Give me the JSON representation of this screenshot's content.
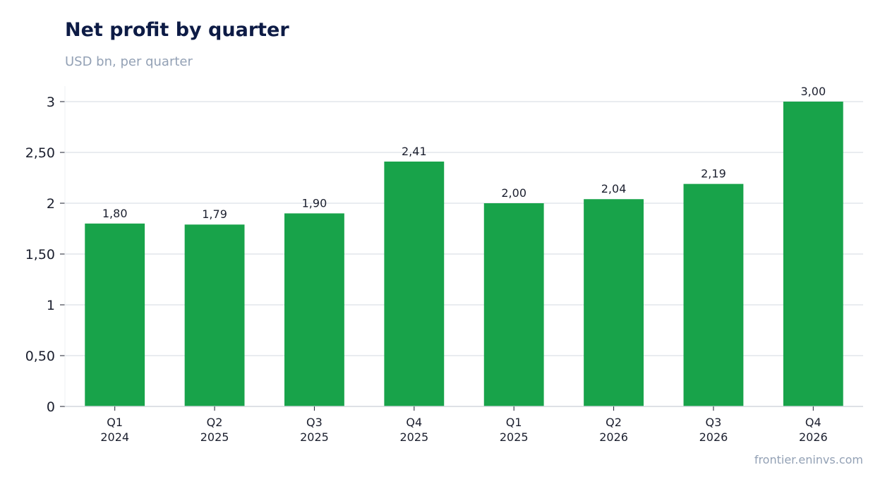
{
  "header": {
    "title": "Net profit by quarter",
    "subtitle": "USD bn, per quarter"
  },
  "footer": {
    "source": "frontier.eninvs.com"
  },
  "chart_data": {
    "type": "bar",
    "title": "Net profit by quarter",
    "subtitle": "USD bn, per quarter",
    "categories": [
      [
        "Q1",
        "2024"
      ],
      [
        "Q2",
        "2025"
      ],
      [
        "Q3",
        "2025"
      ],
      [
        "Q4",
        "2025"
      ],
      [
        "Q1",
        "2025"
      ],
      [
        "Q2",
        "2026"
      ],
      [
        "Q3",
        "2026"
      ],
      [
        "Q4",
        "2026"
      ]
    ],
    "values": [
      1.8,
      1.79,
      1.9,
      2.41,
      2.0,
      2.04,
      2.19,
      3.0
    ],
    "data_labels": [
      "1,80",
      "1,79",
      "1,90",
      "2,41",
      "2,00",
      "2,04",
      "2,19",
      "3,00"
    ],
    "yticks": [
      0,
      0.5,
      1,
      1.5,
      2,
      2.5,
      3
    ],
    "ytick_labels": [
      "0",
      "0,50",
      "1",
      "1,50",
      "2",
      "2,50",
      "3"
    ],
    "ylim": [
      0,
      3.15
    ],
    "grid": true,
    "bar_color": "#18a34a",
    "grid_color": "#e9ecf0",
    "axis_color": "#d3d7de"
  }
}
